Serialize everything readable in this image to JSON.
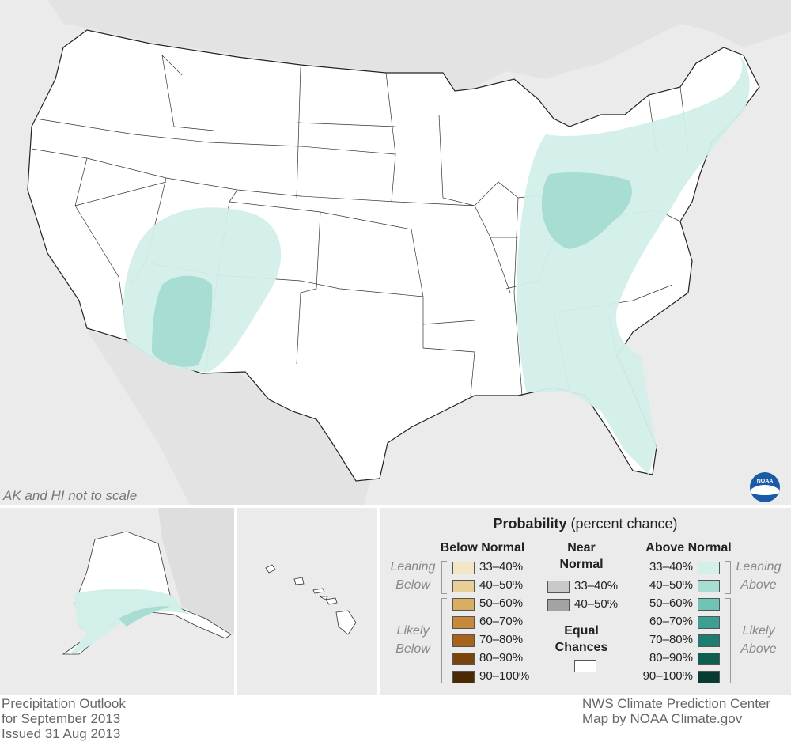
{
  "map": {
    "note": "AK and HI not to scale",
    "logo_text": "NOAA"
  },
  "legend": {
    "title_bold": "Probability",
    "title_rest": " (percent chance)",
    "below": {
      "heading": "Below Normal",
      "leaning_label": [
        "Leaning",
        "Below"
      ],
      "likely_label": [
        "Likely",
        "Below"
      ],
      "rows": [
        {
          "label": "33–40%",
          "color": "#f3e6c4"
        },
        {
          "label": "40–50%",
          "color": "#e8cf96"
        },
        {
          "label": "50–60%",
          "color": "#d8ae62"
        },
        {
          "label": "60–70%",
          "color": "#c48a3a"
        },
        {
          "label": "70–80%",
          "color": "#a7631c"
        },
        {
          "label": "80–90%",
          "color": "#7a450d"
        },
        {
          "label": "90–100%",
          "color": "#4a2905"
        }
      ]
    },
    "near": {
      "heading": [
        "Near",
        "Normal"
      ],
      "rows": [
        {
          "label": "33–40%",
          "color": "#c9c9c9"
        },
        {
          "label": "40–50%",
          "color": "#a3a3a3"
        }
      ],
      "equal_heading": [
        "Equal",
        "Chances"
      ],
      "equal_color": "#ffffff"
    },
    "above": {
      "heading": "Above Normal",
      "leaning_label": [
        "Leaning",
        "Above"
      ],
      "likely_label": [
        "Likely",
        "Above"
      ],
      "rows": [
        {
          "label": "33–40%",
          "color": "#d3efe9"
        },
        {
          "label": "40–50%",
          "color": "#a8ddd3"
        },
        {
          "label": "50–60%",
          "color": "#6ec4b6"
        },
        {
          "label": "60–70%",
          "color": "#3d9f92"
        },
        {
          "label": "70–80%",
          "color": "#1e7c70"
        },
        {
          "label": "80–90%",
          "color": "#0f5e52"
        },
        {
          "label": "90–100%",
          "color": "#083b33"
        }
      ]
    }
  },
  "footer": {
    "left": [
      "Precipitation Outlook",
      "for September 2013",
      "Issued 31 Aug 2013"
    ],
    "right": [
      "NWS Climate Prediction Center",
      "Map by NOAA Climate.gov"
    ]
  }
}
